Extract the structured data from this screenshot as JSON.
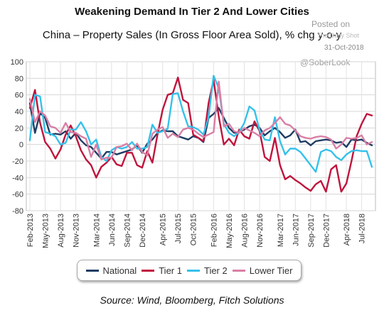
{
  "header": {
    "title": "Weakening Demand In Tier 2 And Lower Cities",
    "subtitle": "China – Property Sales (In Gross Floor Area Sold), % chg y-o-y"
  },
  "watermark": {
    "posted": "Posted on",
    "source": "The Daily Shot",
    "date": "31-Oct-2018",
    "handle": "@SoberLook"
  },
  "footer": {
    "source": "Source: Wind, Bloomberg, Fitch Solutions"
  },
  "chart_data": {
    "type": "line",
    "x": [
      "2013-02",
      "2013-03",
      "2013-04",
      "2013-05",
      "2013-06",
      "2013-07",
      "2013-08",
      "2013-09",
      "2013-10",
      "2013-11",
      "2013-12",
      "2014-01",
      "2014-02",
      "2014-03",
      "2014-04",
      "2014-05",
      "2014-06",
      "2014-07",
      "2014-08",
      "2014-09",
      "2014-10",
      "2014-11",
      "2014-12",
      "2015-01",
      "2015-02",
      "2015-03",
      "2015-04",
      "2015-05",
      "2015-06",
      "2015-07",
      "2015-08",
      "2015-09",
      "2015-10",
      "2015-11",
      "2015-12",
      "2016-01",
      "2016-02",
      "2016-03",
      "2016-04",
      "2016-05",
      "2016-06",
      "2016-07",
      "2016-08",
      "2016-09",
      "2016-10",
      "2016-11",
      "2016-12",
      "2017-01",
      "2017-02",
      "2017-03",
      "2017-04",
      "2017-05",
      "2017-06",
      "2017-07",
      "2017-08",
      "2017-09",
      "2017-10",
      "2017-11",
      "2017-12",
      "2018-01",
      "2018-02",
      "2018-03",
      "2018-04",
      "2018-05",
      "2018-06",
      "2018-07",
      "2018-08",
      "2018-09"
    ],
    "tick_labels": [
      "Feb-2013",
      "May-2013",
      "Aug-2013",
      "Nov-2013",
      "Mar-2014",
      "Jun-2014",
      "Sep-2014",
      "Dec-2014",
      "Apr-2015",
      "Jul-2015",
      "Oct-2015",
      "Feb-2016",
      "May-2016",
      "Aug-2016",
      "Nov-2016",
      "Mar-2017",
      "Jun-2017",
      "Sep-2017",
      "Dec-2017",
      "Apr-2018",
      "Jul-2018"
    ],
    "ylim": [
      -80,
      100
    ],
    "yticks": [
      -80,
      -60,
      -40,
      -20,
      0,
      20,
      40,
      60,
      80,
      100
    ],
    "grid": true,
    "legend_position": "bottom",
    "series": [
      {
        "name": "National",
        "color": "#1f3c63",
        "values": [
          50,
          14,
          38,
          32,
          12,
          13,
          12,
          16,
          7,
          14,
          5,
          -1,
          -3,
          -10,
          -17,
          -9,
          -9,
          -12,
          -10,
          -8,
          -6,
          -1,
          -10,
          1,
          6,
          14,
          17,
          16,
          16,
          10,
          8,
          6,
          10,
          8,
          3,
          32,
          37,
          44,
          32,
          20,
          14,
          15,
          18,
          22,
          24,
          20,
          11,
          16,
          20,
          15,
          8,
          11,
          18,
          3,
          4,
          -1,
          4,
          5,
          6,
          5,
          2,
          3,
          -3,
          6,
          5,
          6,
          2,
          -1
        ]
      },
      {
        "name": "Tier 1",
        "color": "#c0143c",
        "values": [
          44,
          66,
          26,
          3,
          -5,
          -17,
          -6,
          12,
          23,
          10,
          -7,
          -18,
          -25,
          -40,
          -27,
          -22,
          -15,
          -24,
          -26,
          -10,
          -10,
          -25,
          -28,
          -8,
          -22,
          12,
          42,
          60,
          62,
          81,
          54,
          50,
          12,
          8,
          4,
          50,
          78,
          34,
          0,
          7,
          -1,
          18,
          10,
          7,
          28,
          16,
          -15,
          -20,
          8,
          -25,
          -42,
          -38,
          -43,
          -47,
          -52,
          -56,
          -48,
          -44,
          -57,
          -30,
          -25,
          -57,
          -47,
          -20,
          10,
          25,
          37,
          35
        ]
      },
      {
        "name": "Tier 2",
        "color": "#35c1ea",
        "values": [
          5,
          60,
          58,
          15,
          13,
          10,
          0,
          2,
          18,
          18,
          27,
          16,
          0,
          6,
          -15,
          -20,
          -7,
          -3,
          -5,
          -3,
          3,
          -5,
          -5,
          -3,
          24,
          14,
          16,
          19,
          61,
          62,
          40,
          22,
          21,
          18,
          12,
          33,
          83,
          68,
          25,
          14,
          10,
          15,
          26,
          46,
          41,
          17,
          6,
          5,
          33,
          4,
          -12,
          -5,
          -5,
          -9,
          -17,
          -25,
          -33,
          -9,
          -6,
          -8,
          -15,
          -19,
          -12,
          -8,
          -7,
          -8,
          -8,
          -27
        ]
      },
      {
        "name": "Lower Tier",
        "color": "#d97fa5",
        "values": [
          55,
          27,
          40,
          35,
          22,
          20,
          14,
          26,
          15,
          14,
          10,
          7,
          -15,
          0,
          -18,
          -16,
          -16,
          -3,
          -2,
          1,
          -7,
          1,
          -9,
          -13,
          13,
          18,
          21,
          8,
          13,
          9,
          18,
          20,
          18,
          13,
          9,
          12,
          15,
          76,
          22,
          25,
          16,
          14,
          20,
          17,
          14,
          10,
          17,
          20,
          26,
          33,
          25,
          23,
          17,
          10,
          8,
          7,
          9,
          10,
          9,
          6,
          -5,
          0,
          8,
          7,
          8,
          11,
          0,
          3
        ]
      }
    ]
  }
}
